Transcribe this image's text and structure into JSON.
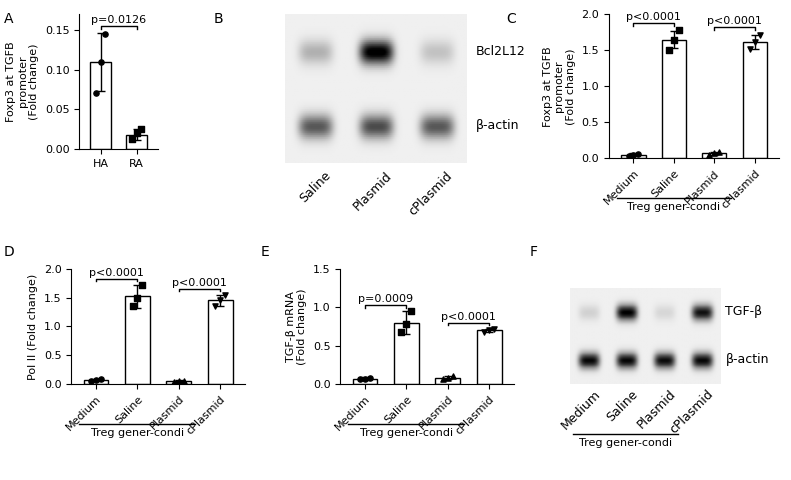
{
  "chart_data": [
    {
      "type": "bar",
      "panel": "A",
      "ylabel": "Foxp3 at TGFB\npromoter\n(Fold change)",
      "categories": [
        "HA",
        "RA"
      ],
      "values": [
        0.11,
        0.018
      ],
      "errors": [
        0.037,
        0.007
      ],
      "points": [
        [
          0.07,
          0.11,
          0.145
        ],
        [
          0.012,
          0.02,
          0.025
        ]
      ],
      "ylim": [
        0,
        0.17
      ],
      "yticks": [
        {
          "value": 0,
          "label": "0.00"
        },
        {
          "value": 0.05,
          "label": "0.05"
        },
        {
          "value": 0.1,
          "label": "0.10"
        },
        {
          "value": 0.15,
          "label": "0.15"
        }
      ],
      "annotations": [
        {
          "text": "p=0.0126",
          "from": 0,
          "to": 1
        }
      ]
    },
    {
      "type": "blot",
      "panel": "B",
      "lanes": [
        "Saline",
        "Plasmid",
        "cPlasmid"
      ],
      "rows": [
        {
          "name": "Bcl2L12",
          "intensities": [
            0.25,
            1.0,
            0.18
          ]
        },
        {
          "name": "β-actin",
          "intensities": [
            0.6,
            0.65,
            0.6
          ]
        }
      ]
    },
    {
      "type": "bar",
      "panel": "C",
      "ylabel": "Foxp3 at TGFB\npromoter\n(Fold change)",
      "categories": [
        "Medium",
        "Saline",
        "Plasmid",
        "cPlasmid"
      ],
      "group_label": "Treg gener-condi",
      "values": [
        0.05,
        1.65,
        0.07,
        1.62
      ],
      "errors": [
        0.02,
        0.12,
        0.02,
        0.1
      ],
      "points": [
        [
          0.04,
          0.05,
          0.06
        ],
        [
          1.5,
          1.65,
          1.78
        ],
        [
          0.05,
          0.07,
          0.09
        ],
        [
          1.52,
          1.62,
          1.72
        ]
      ],
      "ylim": [
        0,
        2.0
      ],
      "yticks": [
        {
          "value": 0,
          "label": "0.0"
        },
        0.5,
        1.0,
        1.5,
        2.0
      ],
      "annotations": [
        {
          "text": "p<0.0001",
          "from": 0,
          "to": 1
        },
        {
          "text": "p<0.0001",
          "from": 2,
          "to": 3
        }
      ]
    },
    {
      "type": "bar",
      "panel": "D",
      "ylabel": "Pol II (Fold change)",
      "categories": [
        "Medium",
        "Saline",
        "Plasmid",
        "cPlasmid"
      ],
      "group_label": "Treg gener-condi",
      "values": [
        0.07,
        1.52,
        0.05,
        1.45
      ],
      "errors": [
        0.02,
        0.2,
        0.02,
        0.1
      ],
      "points": [
        [
          0.05,
          0.07,
          0.08
        ],
        [
          1.35,
          1.5,
          1.72
        ],
        [
          0.04,
          0.05,
          0.06
        ],
        [
          1.35,
          1.45,
          1.55
        ]
      ],
      "ylim": [
        0,
        2.0
      ],
      "yticks": [
        {
          "value": 0,
          "label": "0.0"
        },
        0.5,
        1.0,
        1.5,
        2.0
      ],
      "annotations": [
        {
          "text": "p<0.0001",
          "from": 0,
          "to": 1
        },
        {
          "text": "p<0.0001",
          "from": 2,
          "to": 3
        }
      ]
    },
    {
      "type": "bar",
      "panel": "E",
      "ylabel": "TGF-β mRNA\n(Fold change)",
      "categories": [
        "Medium",
        "Saline",
        "Plasmid",
        "cPlasmid"
      ],
      "group_label": "Treg gener-condi",
      "values": [
        0.07,
        0.8,
        0.08,
        0.7
      ],
      "errors": [
        0.015,
        0.15,
        0.02,
        0.02
      ],
      "points": [
        [
          0.06,
          0.07,
          0.08
        ],
        [
          0.68,
          0.78,
          0.95
        ],
        [
          0.06,
          0.08,
          0.1
        ],
        [
          0.68,
          0.7,
          0.71
        ]
      ],
      "ylim": [
        0,
        1.5
      ],
      "yticks": [
        {
          "value": 0,
          "label": "0.0"
        },
        0.5,
        1.0,
        1.5
      ],
      "annotations": [
        {
          "text": "p=0.0009",
          "from": 0,
          "to": 1
        },
        {
          "text": "p<0.0001",
          "from": 2,
          "to": 3
        }
      ]
    },
    {
      "type": "blot",
      "panel": "F",
      "lanes": [
        "Medium",
        "Saline",
        "Plasmid",
        "cPlasmid"
      ],
      "group_label": "Treg gener-condi",
      "rows": [
        {
          "name": "TGF-β",
          "intensities": [
            0.12,
            0.95,
            0.1,
            0.88
          ]
        },
        {
          "name": "β-actin",
          "intensities": [
            0.92,
            0.92,
            0.9,
            0.92
          ]
        }
      ]
    }
  ]
}
